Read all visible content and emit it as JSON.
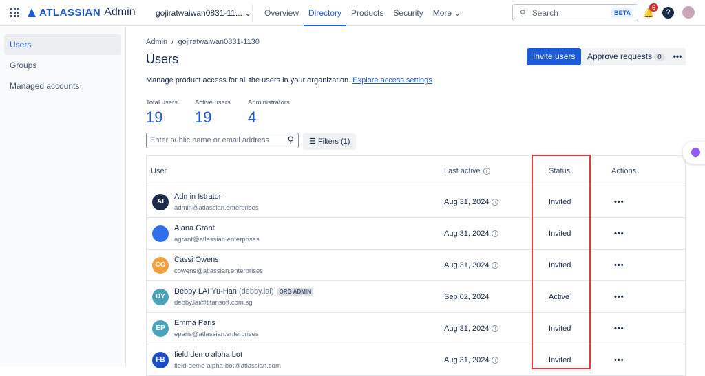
{
  "header": {
    "brand": "ATLASSIAN",
    "product": "Admin",
    "org": "gojiratwaiwan0831-11...",
    "nav": [
      "Overview",
      "Directory",
      "Products",
      "Security",
      "More"
    ],
    "active_nav": "Directory",
    "search_placeholder": "Search",
    "search_badge": "BETA",
    "notifications": "6",
    "help": "?"
  },
  "sidebar": {
    "items": [
      {
        "label": "Users"
      },
      {
        "label": "Groups"
      },
      {
        "label": "Managed accounts"
      }
    ]
  },
  "breadcrumb": [
    "Admin",
    "gojiratwaiwan0831-1130"
  ],
  "page": {
    "title": "Users",
    "description": "Manage product access for all the users in your organization.",
    "link": "Explore access settings",
    "invite": "Invite users",
    "approve": "Approve requests",
    "approve_count": "0",
    "more": "•••"
  },
  "stats": [
    {
      "label": "Total users",
      "value": "19"
    },
    {
      "label": "Active users",
      "value": "19"
    },
    {
      "label": "Administrators",
      "value": "4"
    }
  ],
  "filter": {
    "placeholder": "Enter public name or email address",
    "filters": "Filters (1)"
  },
  "table": {
    "headers": [
      "User",
      "Last active",
      "Status",
      "Actions"
    ],
    "rows": [
      {
        "initials": "AI",
        "color": "#1c2b4a",
        "name": "Admin Istrator",
        "email": "admin@atlassian.enterprises",
        "last": "Aug 31, 2024",
        "status": "Invited"
      },
      {
        "initials": "",
        "color": "#2f6fea",
        "name": "Alana Grant",
        "email": "agrant@atlassian.enterprises",
        "last": "Aug 31, 2024",
        "status": "Invited"
      },
      {
        "initials": "CO",
        "color": "#f0a03c",
        "name": "Cassi Owens",
        "email": "cowens@atlassian.enterprises",
        "last": "Aug 31, 2024",
        "status": "Invited"
      },
      {
        "initials": "DY",
        "color": "#4aa3b8",
        "name": "Debby LAI Yu-Han",
        "username": "(debby.lai)",
        "tag": "ORG ADMIN",
        "email": "debby.lai@titansoft.com.sg",
        "last": "Sep 02, 2024",
        "status": "Active"
      },
      {
        "initials": "EP",
        "color": "#4aa3b8",
        "name": "Emma Paris",
        "email": "eparis@atlassian.enterprises",
        "last": "Aug 31, 2024",
        "status": "Invited"
      },
      {
        "initials": "FB",
        "color": "#1d4fc4",
        "name": "field demo alpha bot",
        "email": "field-demo-alpha-bot@atlassian.com",
        "last": "Aug 31, 2024",
        "status": "Invited"
      }
    ]
  }
}
